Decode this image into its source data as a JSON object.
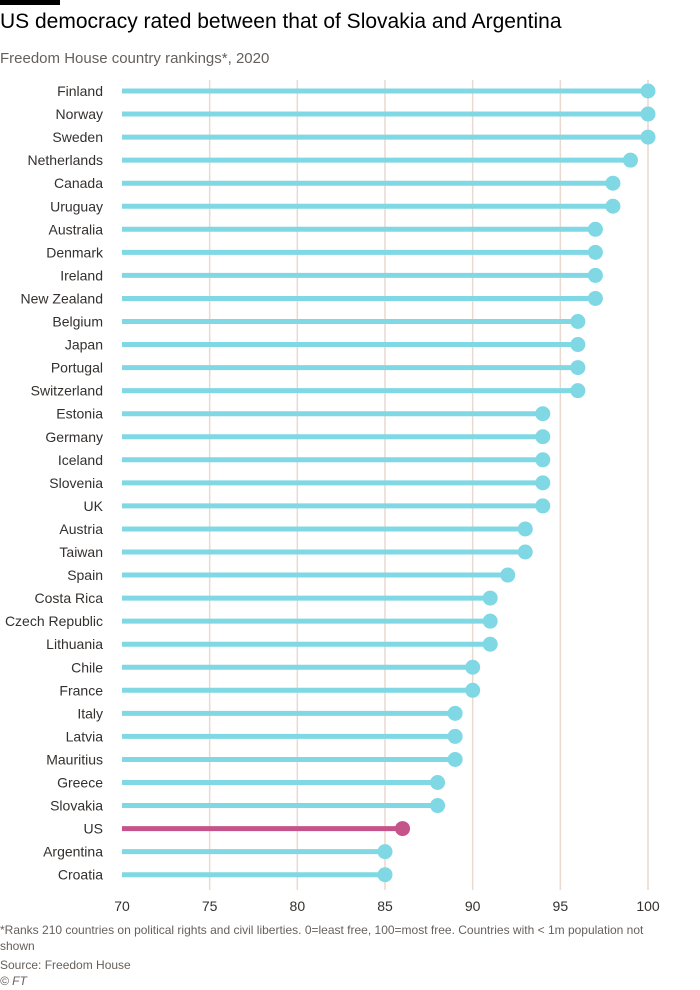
{
  "header": {
    "title": "US democracy rated between that of Slovakia and Argentina",
    "subtitle": "Freedom House country rankings*, 2020"
  },
  "footer": {
    "note": "*Ranks 210 countries on political rights and civil liberties. 0=least free, 100=most free. Countries with < 1m population not shown",
    "source": "Source: Freedom House",
    "credit": "© FT"
  },
  "colors": {
    "default": "#7fd8e4",
    "highlight": "#c4548a",
    "gridline": "#e9d9cf",
    "text": "#33302e"
  },
  "chart_data": {
    "type": "lollipop",
    "orientation": "horizontal",
    "title": "US democracy rated between that of Slovakia and Argentina",
    "subtitle": "Freedom House country rankings*, 2020",
    "xlim": [
      70,
      100
    ],
    "xticks": [
      70,
      75,
      80,
      85,
      90,
      95,
      100
    ],
    "grid": true,
    "highlight": "US",
    "categories": [
      "Finland",
      "Norway",
      "Sweden",
      "Netherlands",
      "Canada",
      "Uruguay",
      "Australia",
      "Denmark",
      "Ireland",
      "New Zealand",
      "Belgium",
      "Japan",
      "Portugal",
      "Switzerland",
      "Estonia",
      "Germany",
      "Iceland",
      "Slovenia",
      "UK",
      "Austria",
      "Taiwan",
      "Spain",
      "Costa Rica",
      "Czech Republic",
      "Lithuania",
      "Chile",
      "France",
      "Italy",
      "Latvia",
      "Mauritius",
      "Greece",
      "Slovakia",
      "US",
      "Argentina",
      "Croatia"
    ],
    "values": [
      100,
      100,
      100,
      99,
      98,
      98,
      97,
      97,
      97,
      97,
      96,
      96,
      96,
      96,
      94,
      94,
      94,
      94,
      94,
      93,
      93,
      92,
      91,
      91,
      91,
      90,
      90,
      89,
      89,
      89,
      88,
      88,
      86,
      85,
      85
    ]
  }
}
